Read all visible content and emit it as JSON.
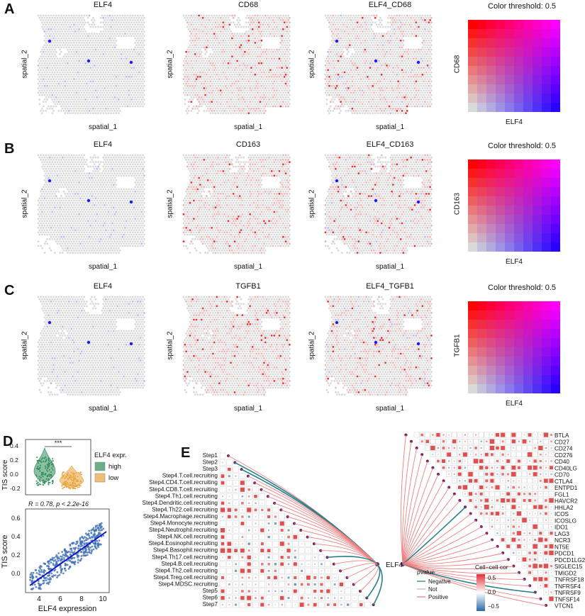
{
  "figure": {
    "rows": [
      {
        "label": "A",
        "gene1": "ELF4",
        "gene2": "CD68",
        "combo": "ELF4_CD68",
        "threshold": "Color threshold: 0.5",
        "legend_y": "CD68",
        "legend_x": "ELF4",
        "xlabel": "spatial_1",
        "ylabel": "spatial_2"
      },
      {
        "label": "B",
        "gene1": "ELF4",
        "gene2": "CD163",
        "combo": "ELF4_CD163",
        "threshold": "Color threshold: 0.5",
        "legend_y": "CD163",
        "legend_x": "ELF4",
        "xlabel": "spatial_1",
        "ylabel": "spatial_2"
      },
      {
        "label": "C",
        "gene1": "ELF4",
        "gene2": "TGFB1",
        "combo": "ELF4_TGFB1",
        "threshold": "Color threshold: 0.5",
        "legend_y": "TGFB1",
        "legend_x": "ELF4",
        "xlabel": "spatial_1",
        "ylabel": "spatial_2"
      }
    ],
    "colors": {
      "elf4": "#1a1aff",
      "gene2": "#ff1a1a",
      "background": "#d9d9d9"
    }
  },
  "panel_d": {
    "label": "D",
    "violin": {
      "ylabel": "TIS score",
      "sig": "***",
      "legend_title": "ELF4 expr.",
      "groups": [
        "high",
        "low"
      ],
      "colors": [
        "#2e8b57",
        "#e8a33a"
      ],
      "yticks": [
        "0.4",
        "0.2",
        "0.0",
        "-0.2"
      ]
    },
    "scatter": {
      "ylabel": "TIS score",
      "xlabel": "ELF4 expression",
      "stat": "R = 0.78, p < 2.2e-16",
      "xticks": [
        "4",
        "6",
        "8",
        "10"
      ],
      "yticks": [
        "0.6",
        "0.4",
        "0.2",
        "0.0"
      ]
    }
  },
  "panel_e": {
    "label": "E",
    "center": "ELF4",
    "steps": [
      "Step1",
      "Step2",
      "Step3",
      "Step4.T.cell.recruiting",
      "Step4.CD4.T.cell.recruiting",
      "Step4.CD8.T.cell.recruiting",
      "Step4.Th1.cell.recruiting",
      "Step4.Dendritic.cell.recruiting",
      "Step4.Th22.cell.recruiting",
      "Step4.Macrophage.recruiting",
      "Step4.Monocyte.recruiting",
      "Step4.Neutrophil.recruiting",
      "Step4.NK.cell.recruiting",
      "Step4.Eosinophil.recruiting",
      "Step4.Basophil.recruiting",
      "Step4.Th17.cell.recruiting",
      "Step4.B.cell.recruiting",
      "Step4.Th2.cell.recruiting",
      "Step4.Treg.cell.recruiting",
      "Step4.MDSC.recruiting",
      "Step5",
      "Step6",
      "Step7"
    ],
    "genes": [
      "BTLA",
      "CD27",
      "CD274",
      "CD276",
      "CD40",
      "CD40LG",
      "CD70",
      "CTLA4",
      "ENTPD1",
      "FGL1",
      "HAVCR2",
      "HHLA2",
      "ICOS",
      "ICOSLG",
      "IDO1",
      "LAG3",
      "NCR3",
      "NT5E",
      "PDCD1",
      "PDCD1LG2",
      "SIGLEC15",
      "TMIGD2",
      "TNFRSF18",
      "TNFRSF4",
      "TNFRSF9",
      "TNFSF14",
      "VTCN1"
    ],
    "pvalue_legend": {
      "title": "pvalue",
      "items": [
        "Negative",
        "Not",
        "Positive"
      ],
      "colors": [
        "#2a7f8a",
        "#bbbbbb",
        "#f08080"
      ]
    },
    "cor_legend": {
      "title": "Cell−cell cor",
      "ticks": [
        "0.5",
        "0.0",
        "−0.5"
      ]
    }
  }
}
